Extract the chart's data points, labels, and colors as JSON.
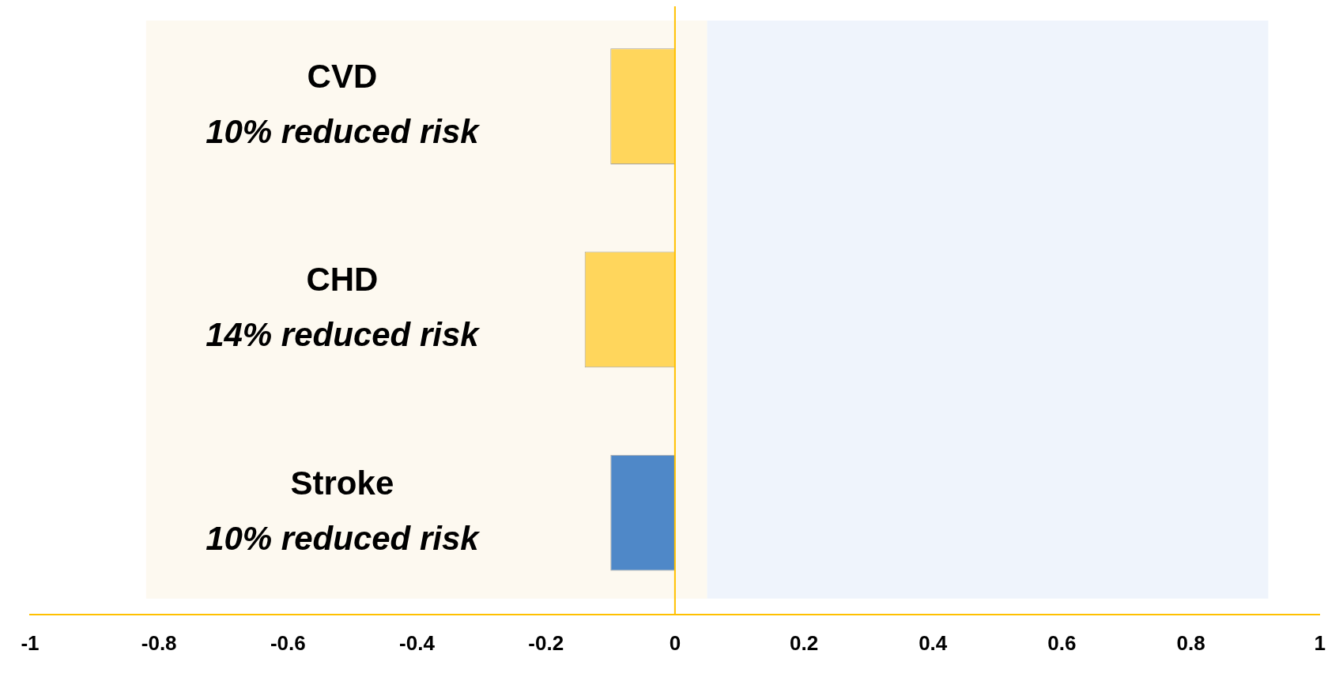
{
  "chart_data": {
    "type": "bar",
    "orientation": "horizontal",
    "categories": [
      "CVD",
      "CHD",
      "Stroke"
    ],
    "values": [
      -0.1,
      -0.14,
      -0.1
    ],
    "colors": [
      "#ffd65c",
      "#ffd65c",
      "#4f88c8"
    ],
    "xlim": [
      -1,
      1
    ],
    "xticks": [
      -1,
      -0.8,
      -0.6,
      -0.4,
      -0.2,
      0,
      0.2,
      0.4,
      0.6,
      0.8,
      1
    ],
    "grid": false,
    "legend": false,
    "tick_labels": "x",
    "ref_lines": [
      {
        "axis": "x",
        "value": 0,
        "color": "#ffc000"
      }
    ],
    "bands": [
      {
        "axis": "x",
        "from": -0.82,
        "to": 0.05,
        "color": "#fdf9f0"
      },
      {
        "axis": "x",
        "from": 0.05,
        "to": 0.92,
        "color": "#eff4fc"
      }
    ],
    "annotations": [
      "10% reduced risk",
      "14% reduced risk",
      "10% reduced risk"
    ]
  }
}
